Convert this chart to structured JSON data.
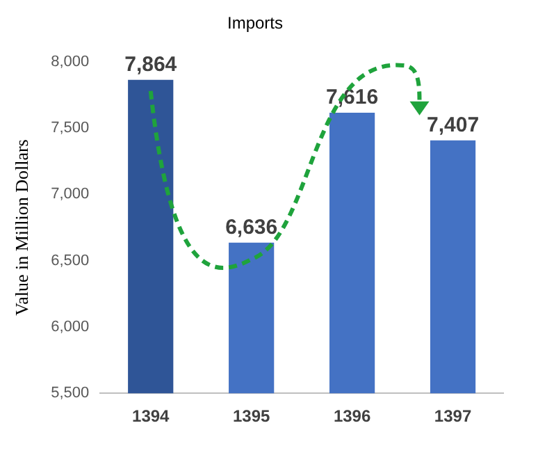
{
  "chart_data": {
    "type": "bar",
    "title": "Imports",
    "ylabel": "Value in Million Dollars",
    "categories": [
      "1394",
      "1395",
      "1396",
      "1397"
    ],
    "values": [
      7864,
      6636,
      7616,
      7407
    ],
    "colors": [
      "#2f5597",
      "#4472c4",
      "#4472c4",
      "#4472c4"
    ],
    "ylim": [
      5500,
      8000
    ],
    "yticks": [
      {
        "value": 5500,
        "label": "5,500"
      },
      {
        "value": 6000,
        "label": "6,000"
      },
      {
        "value": 6500,
        "label": "6,500"
      },
      {
        "value": 7000,
        "label": "7,000"
      },
      {
        "value": 7500,
        "label": "7,500"
      },
      {
        "value": 8000,
        "label": "8,000"
      }
    ],
    "value_labels": [
      "7,864",
      "6,636",
      "7,616",
      "7,407"
    ],
    "grid": false,
    "legend": false
  }
}
